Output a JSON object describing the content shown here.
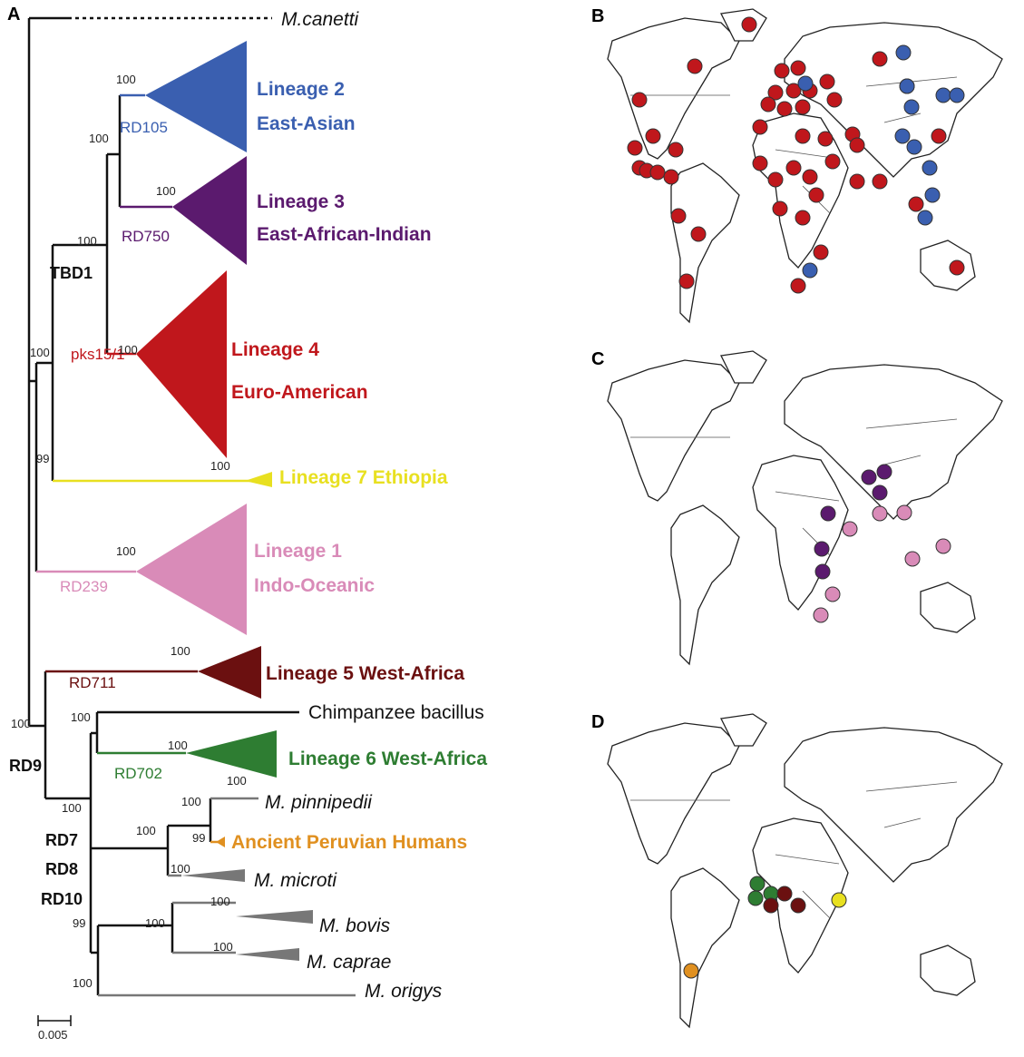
{
  "panels": [
    "A",
    "B",
    "C",
    "D"
  ],
  "tree": {
    "outgroup": "M.canetti",
    "lineages": [
      {
        "name": "Lineage 2",
        "region": "East-Asian",
        "marker": "RD105"
      },
      {
        "name": "Lineage 3",
        "region": "East-African-Indian",
        "marker": "RD750"
      },
      {
        "name": "Lineage 4",
        "region": "Euro-American",
        "marker": "pks15/1"
      },
      {
        "name": "Lineage 7 Ethiopia"
      },
      {
        "name": "Lineage 1",
        "region": "Indo-Oceanic",
        "marker": "RD239"
      },
      {
        "name": "Lineage 5 West-Africa",
        "marker": "RD711"
      },
      {
        "name": "Lineage 6 West-Africa",
        "marker": "RD702"
      },
      {
        "name": "Ancient Peruvian Humans"
      }
    ],
    "others": [
      "Chimpanzee bacillus",
      "M. pinnipedii",
      "M. microti",
      "M. bovis",
      "M. caprae",
      "M. origys"
    ],
    "deletions": [
      "TBD1",
      "RD9",
      "RD7",
      "RD8",
      "RD10"
    ],
    "support": [
      "100",
      "100",
      "100",
      "100",
      "100",
      "100",
      "100",
      "99",
      "100",
      "100",
      "100",
      "100",
      "100",
      "100",
      "100",
      "100",
      "99",
      "100",
      "100",
      "100",
      "100",
      "99",
      "100",
      "100"
    ],
    "scale": "0.005"
  }
}
